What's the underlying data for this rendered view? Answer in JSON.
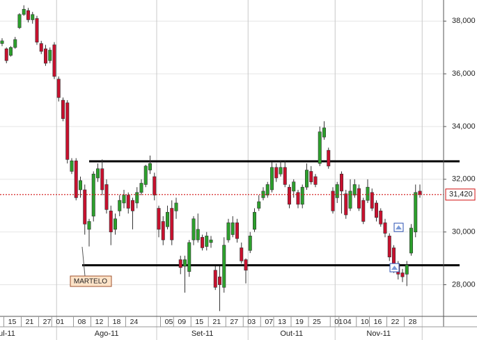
{
  "chart_data": {
    "type": "candlestick",
    "categories": [
      null,
      null,
      "15",
      null,
      null,
      null,
      "21",
      null,
      null,
      null,
      "27",
      null,
      null,
      "01",
      null,
      null,
      null,
      null,
      "08",
      null,
      null,
      null,
      "12",
      null,
      null,
      null,
      "18",
      null,
      null,
      null,
      "24",
      null,
      null,
      null,
      null,
      null,
      null,
      null,
      "05",
      null,
      null,
      "09",
      null,
      null,
      null,
      "15",
      null,
      null,
      null,
      "21",
      null,
      null,
      null,
      "27",
      null,
      null,
      null,
      "03",
      null,
      null,
      null,
      "07",
      null,
      null,
      "13",
      null,
      null,
      null,
      "19",
      null,
      null,
      null,
      "25",
      null,
      null,
      null,
      null,
      "01",
      null,
      "04",
      null,
      null,
      null,
      "10",
      null,
      null,
      "16",
      null,
      null,
      null,
      "22",
      null,
      null,
      null,
      "28",
      null,
      null
    ],
    "month_labels": [
      "ul-11",
      "Ago-11",
      "Set-11",
      "Out-11",
      "Nov-11"
    ],
    "open": [
      37150,
      36950,
      36700,
      37000,
      37750,
      38250,
      38400,
      38050,
      38100,
      37150,
      36950,
      36500,
      37100,
      35800,
      35000,
      34900,
      32300,
      32700,
      31600,
      31600,
      30100,
      30600,
      32050,
      32400,
      31800,
      30800,
      30100,
      30800,
      31100,
      31400,
      31200,
      31100,
      31500,
      31800,
      32350,
      32100,
      30900,
      30400,
      30200,
      30900,
      30800,
      28950,
      28700,
      28500,
      29700,
      29700,
      29800,
      29450,
      29600,
      28550,
      28300,
      27900,
      29700,
      29900,
      30350,
      29400,
      28950,
      29300,
      30100,
      30900,
      31300,
      31400,
      31600,
      32450,
      32200,
      32450,
      31700,
      31550,
      31500,
      31050,
      31700,
      32300,
      32100,
      32600,
      33600,
      33100,
      31550,
      31300,
      32200,
      31450,
      30900,
      31400,
      31650,
      31200,
      31200,
      31500,
      31100,
      30800,
      30350,
      29850,
      29400,
      28800,
      28450,
      28400,
      29200,
      30000,
      31550
    ],
    "high": [
      37350,
      37000,
      37050,
      37400,
      38300,
      38600,
      38500,
      38350,
      38200,
      37250,
      37100,
      37000,
      37200,
      35900,
      35100,
      35000,
      32800,
      32800,
      32100,
      31800,
      30500,
      32300,
      32600,
      32750,
      32000,
      31000,
      30700,
      31400,
      31600,
      31500,
      31300,
      31700,
      32000,
      32550,
      32900,
      32250,
      31000,
      30600,
      31000,
      31200,
      31300,
      29100,
      29100,
      29700,
      30600,
      30700,
      29900,
      30000,
      29850,
      28700,
      28700,
      29800,
      30500,
      30600,
      30500,
      29600,
      29000,
      30000,
      30900,
      31400,
      31700,
      31900,
      32650,
      32600,
      32700,
      32700,
      31800,
      32000,
      31600,
      31800,
      32600,
      32500,
      32200,
      34000,
      34200,
      33200,
      31700,
      31900,
      32300,
      31600,
      32000,
      32000,
      31800,
      31300,
      32000,
      31650,
      31200,
      30900,
      30500,
      29950,
      29500,
      28900,
      28600,
      28900,
      30300,
      31800,
      31800
    ],
    "low": [
      37050,
      36400,
      36650,
      36950,
      37700,
      38200,
      37950,
      37900,
      37100,
      36750,
      36300,
      36400,
      35800,
      34950,
      34200,
      32600,
      32200,
      31200,
      31300,
      29900,
      29450,
      30400,
      31900,
      31400,
      30700,
      29500,
      29900,
      30600,
      30900,
      30700,
      30100,
      30900,
      31400,
      31700,
      32200,
      31200,
      29800,
      29500,
      30100,
      29500,
      30500,
      28400,
      27700,
      28300,
      29500,
      29600,
      29300,
      29300,
      29400,
      27800,
      27000,
      27700,
      29600,
      29800,
      29600,
      28800,
      28050,
      29200,
      30000,
      30800,
      31200,
      31300,
      31500,
      31900,
      32100,
      31700,
      30900,
      31300,
      30900,
      30900,
      31600,
      31800,
      31700,
      32500,
      33500,
      32400,
      30700,
      31100,
      30700,
      30500,
      30800,
      31300,
      30800,
      30300,
      31100,
      30800,
      30400,
      30200,
      29800,
      28900,
      28450,
      28200,
      28100,
      27950,
      29100,
      29800,
      31300
    ],
    "close": [
      37250,
      36500,
      37000,
      37300,
      38250,
      38450,
      38050,
      38250,
      37200,
      36850,
      36400,
      36900,
      35900,
      35100,
      34300,
      32750,
      32700,
      31300,
      31950,
      30300,
      30400,
      32200,
      32400,
      31600,
      30850,
      30000,
      30500,
      31200,
      31400,
      30900,
      30800,
      31500,
      31850,
      32500,
      32600,
      31400,
      30100,
      29700,
      30750,
      29700,
      31100,
      28650,
      28950,
      29600,
      30500,
      30100,
      29400,
      29850,
      29700,
      27900,
      28000,
      29500,
      30350,
      30350,
      29750,
      28900,
      28550,
      29850,
      30750,
      31150,
      31550,
      31800,
      32450,
      32050,
      32450,
      31800,
      31050,
      31900,
      31050,
      31700,
      32350,
      31900,
      31800,
      33800,
      33950,
      32500,
      30800,
      31800,
      31550,
      30650,
      31550,
      31800,
      30900,
      30400,
      31700,
      30900,
      30550,
      30300,
      29950,
      29050,
      28650,
      28400,
      28300,
      28750,
      30150,
      31500,
      31420
    ],
    "up_color": "#2ca02c",
    "down_color": "#c8102e",
    "ylim": [
      26800,
      38800
    ],
    "yticks": [
      {
        "value": 28000,
        "label": "28,000"
      },
      {
        "value": 30000,
        "label": "30,000"
      },
      {
        "value": 32000,
        "label": "32,000"
      },
      {
        "value": 34000,
        "label": "34,000"
      },
      {
        "value": 36000,
        "label": "36,000"
      },
      {
        "value": 38000,
        "label": "38,000"
      }
    ],
    "grid": true,
    "last_price": {
      "value": 31420,
      "label": "31,420"
    },
    "trend_lines": [
      32680,
      28740
    ],
    "annotation": "MARTELO"
  }
}
